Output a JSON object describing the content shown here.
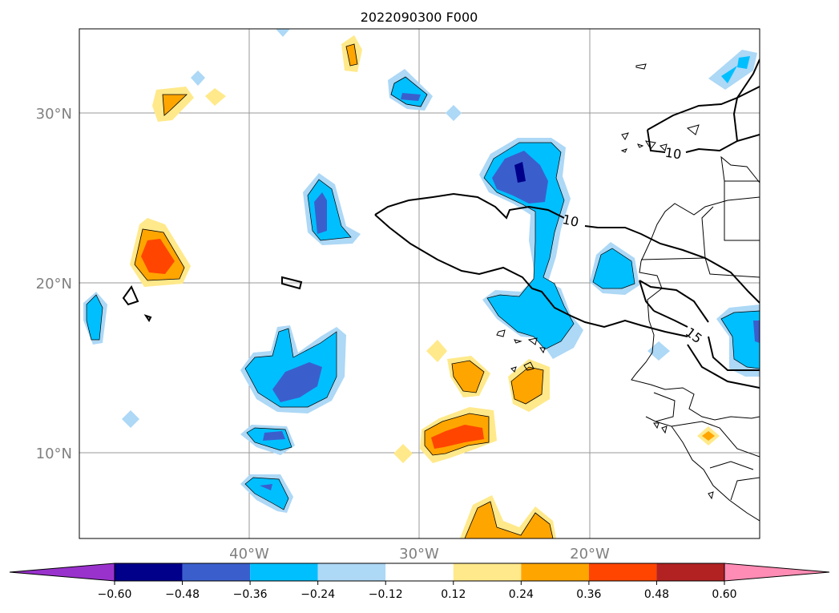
{
  "title": "2022090300 F000",
  "map": {
    "lat_labels": [
      "30°N",
      "20°N",
      "10°N"
    ],
    "lon_labels": [
      "40°W",
      "30°W",
      "20°W"
    ],
    "contour_labels": [
      "10",
      "10",
      "15"
    ]
  },
  "colorbar": {
    "ticks": [
      "−0.60",
      "−0.48",
      "−0.36",
      "−0.24",
      "−0.12",
      "0.12",
      "0.24",
      "0.36",
      "0.48",
      "0.60"
    ],
    "colors": {
      "under": "#9932cc",
      "bins": [
        "#00008b",
        "#3a5fcd",
        "#00bfff",
        "#add8f6",
        "#ffffff",
        "#ffe98a",
        "#ffa500",
        "#ff4500",
        "#b22222"
      ],
      "over": "#ff8cb4"
    }
  }
}
